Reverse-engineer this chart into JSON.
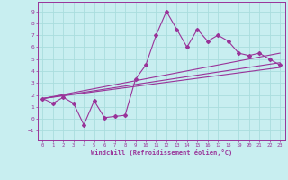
{
  "xlabel": "Windchill (Refroidissement éolien,°C)",
  "bg_color": "#c8eef0",
  "line_color": "#993399",
  "grid_color": "#aadddd",
  "xlim": [
    -0.5,
    23.5
  ],
  "ylim": [
    -1.8,
    9.8
  ],
  "xticks": [
    0,
    1,
    2,
    3,
    4,
    5,
    6,
    7,
    8,
    9,
    10,
    11,
    12,
    13,
    14,
    15,
    16,
    17,
    18,
    19,
    20,
    21,
    22,
    23
  ],
  "yticks": [
    -1,
    0,
    1,
    2,
    3,
    4,
    5,
    6,
    7,
    8,
    9
  ],
  "main_x": [
    0,
    1,
    2,
    3,
    4,
    5,
    6,
    7,
    8,
    9,
    10,
    11,
    12,
    13,
    14,
    15,
    16,
    17,
    18,
    19,
    20,
    21,
    22,
    23
  ],
  "main_y": [
    1.7,
    1.3,
    1.8,
    1.3,
    -0.5,
    1.5,
    0.1,
    0.2,
    0.3,
    3.3,
    4.5,
    7.0,
    9.0,
    7.5,
    6.0,
    7.5,
    6.5,
    7.0,
    6.5,
    5.5,
    5.3,
    5.5,
    5.0,
    4.5
  ],
  "line1_x": [
    0,
    23
  ],
  "line1_y": [
    1.7,
    4.3
  ],
  "line2_x": [
    0,
    23
  ],
  "line2_y": [
    1.7,
    5.5
  ],
  "line3_x": [
    0,
    23
  ],
  "line3_y": [
    1.7,
    4.7
  ]
}
